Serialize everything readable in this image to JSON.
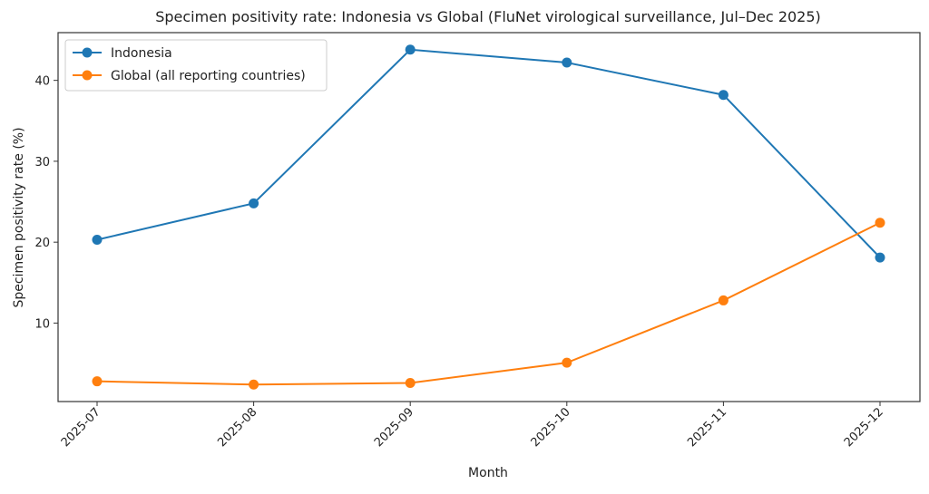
{
  "chart_data": {
    "type": "line",
    "title": "Specimen positivity rate: Indonesia vs Global (FluNet virological surveillance, Jul–Dec 2025)",
    "xlabel": "Month",
    "ylabel": "Specimen positivity rate (%)",
    "categories": [
      "2025-07",
      "2025-08",
      "2025-09",
      "2025-10",
      "2025-11",
      "2025-12"
    ],
    "ylim": [
      0.3,
      45.9
    ],
    "yticks": [
      10,
      20,
      30,
      40
    ],
    "grid": false,
    "legend_position": "top-left",
    "series": [
      {
        "name": "Indonesia",
        "color": "#1f77b4",
        "values": [
          20.3,
          24.8,
          43.8,
          42.2,
          38.2,
          18.1
        ]
      },
      {
        "name": "Global (all reporting countries)",
        "color": "#ff7f0e",
        "values": [
          2.8,
          2.4,
          2.6,
          5.1,
          12.8,
          22.4
        ]
      }
    ]
  }
}
